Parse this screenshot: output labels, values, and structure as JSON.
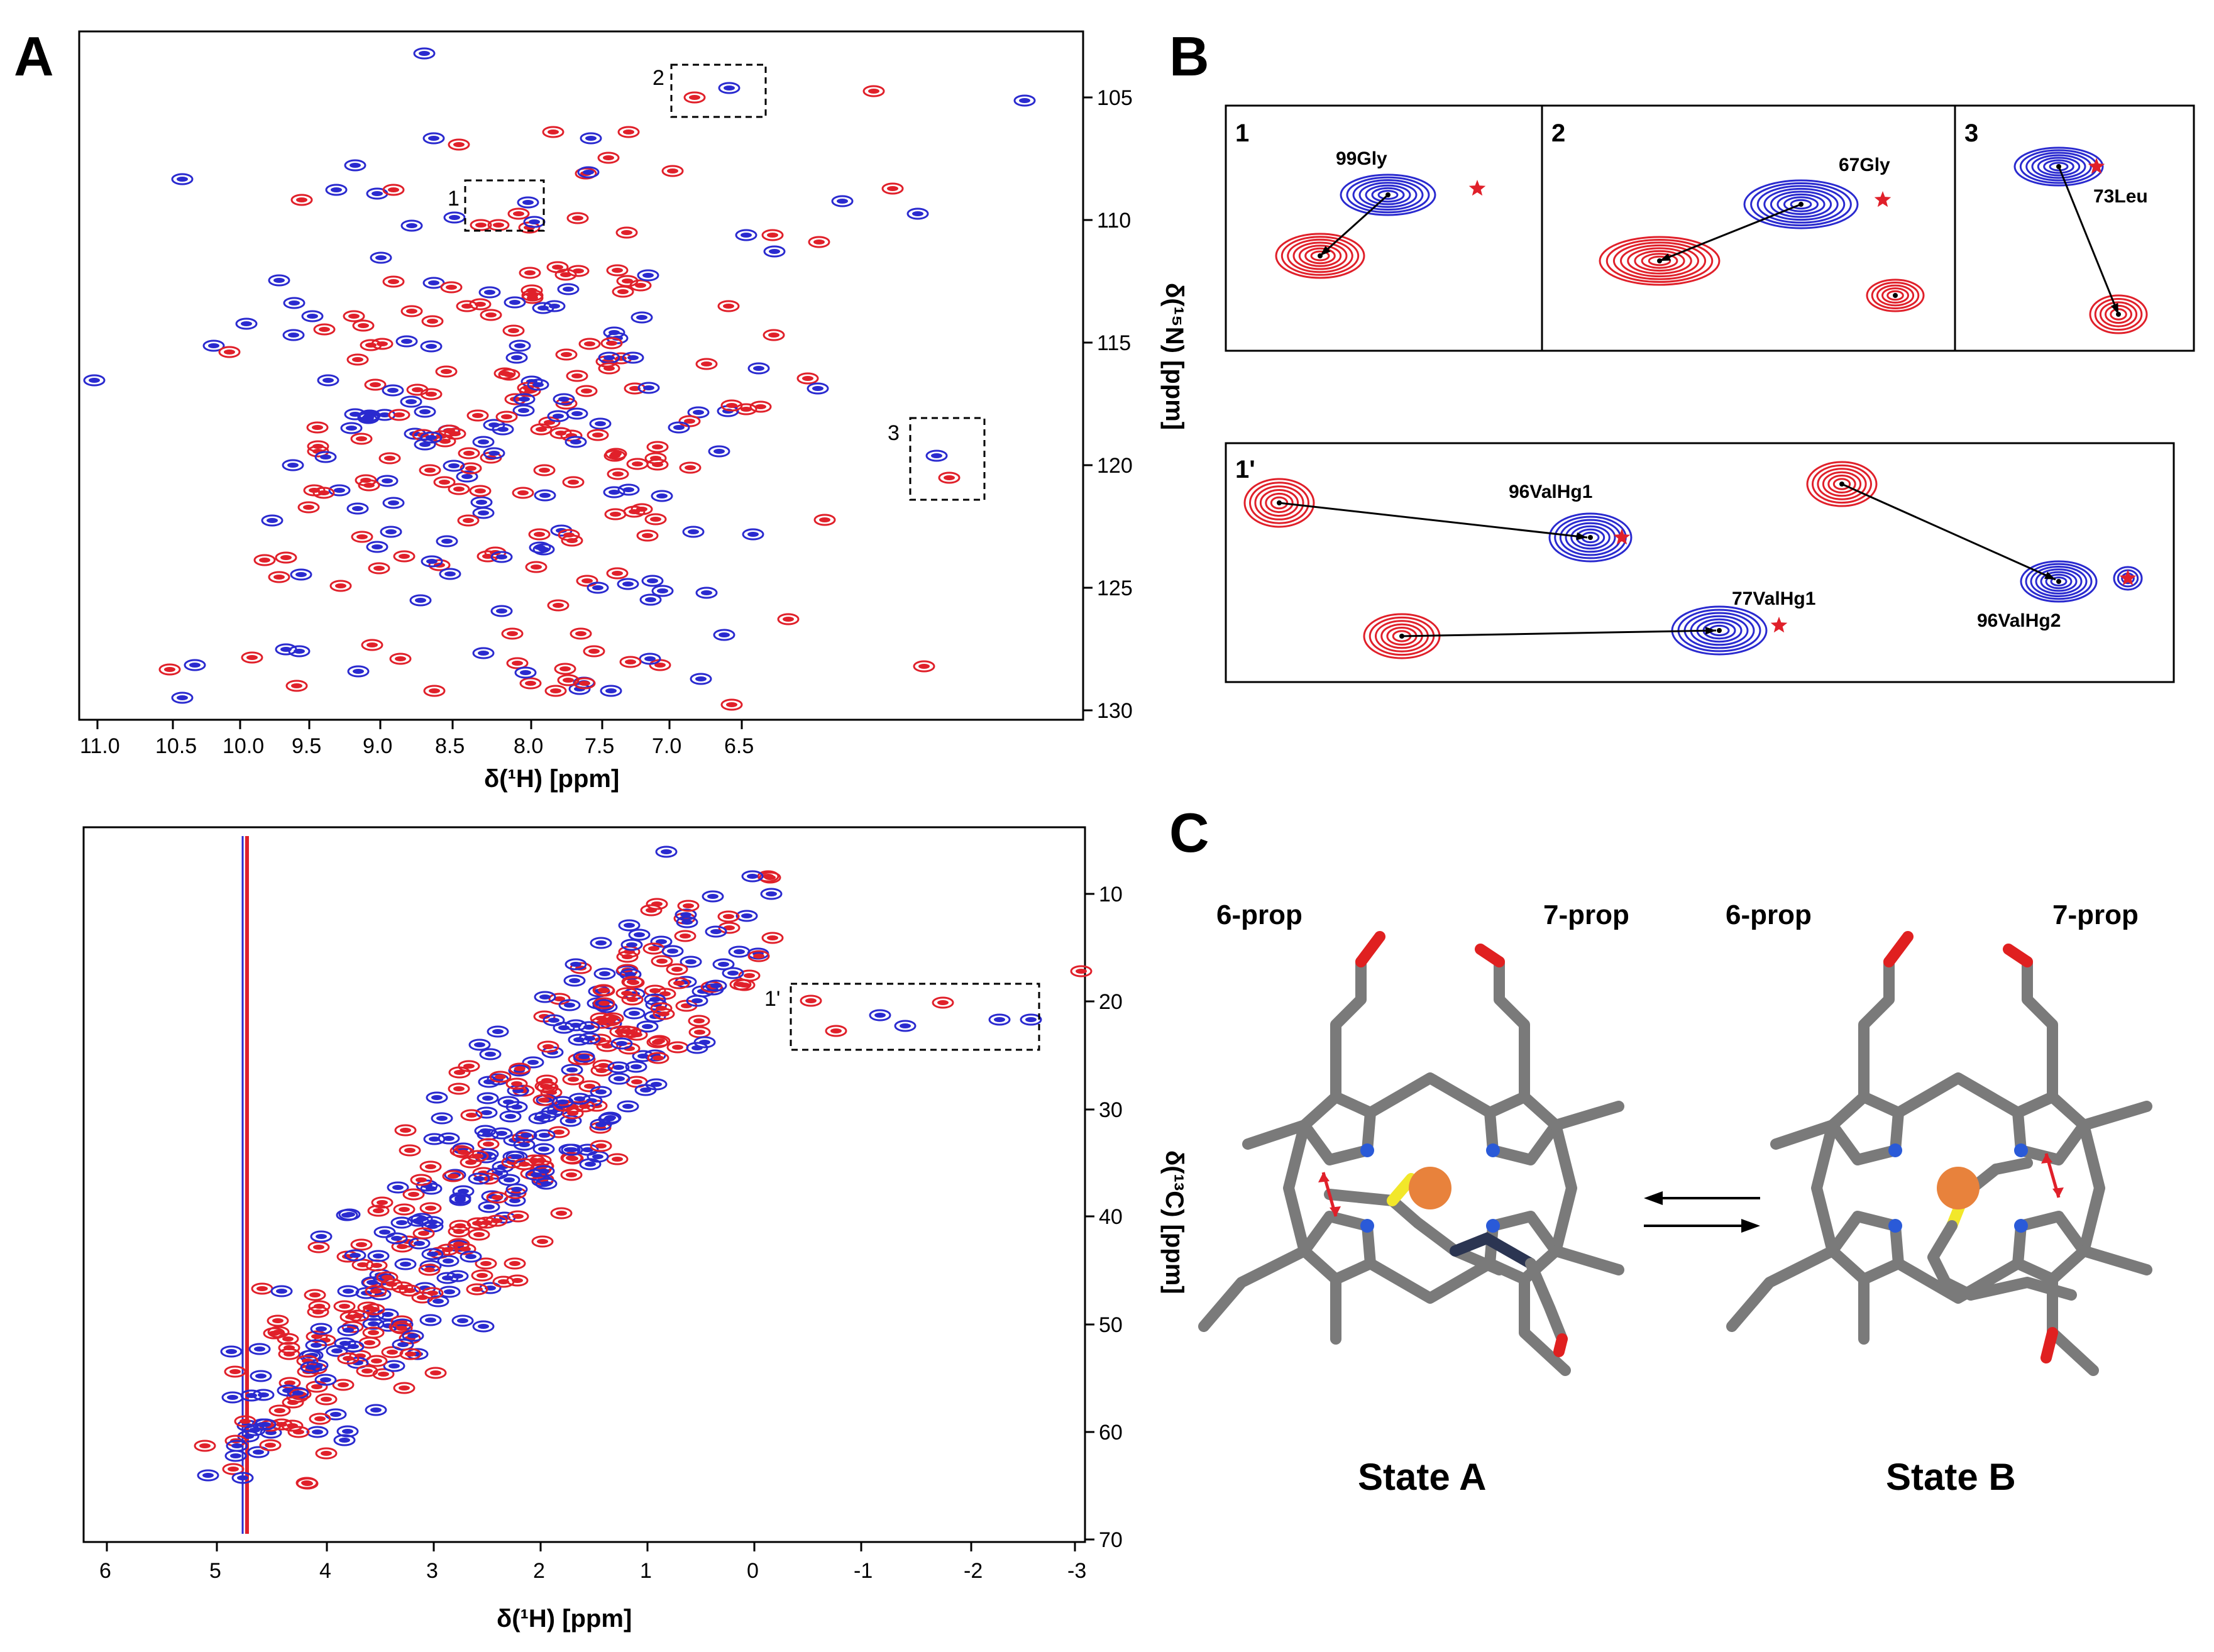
{
  "figure": {
    "panel_a": {
      "letter": "A",
      "hsqc": {
        "xlabel": "δ(¹H) [ppm]",
        "ylabel": "δ(¹⁵N) [ppm]",
        "xticks": [
          "11.0",
          "10.5",
          "10.0",
          "9.5",
          "9.0",
          "8.5",
          "8.0",
          "7.5",
          "7.0",
          "6.5"
        ],
        "yticks": [
          "105",
          "110",
          "115",
          "120",
          "125",
          "130"
        ],
        "box_labels": [
          "1",
          "2",
          "3"
        ]
      },
      "hmqc": {
        "xlabel": "δ(¹H) [ppm]",
        "ylabel": "δ(¹³C) [ppm]",
        "xticks": [
          "6",
          "5",
          "4",
          "3",
          "2",
          "1",
          "0",
          "-1",
          "-2",
          "-3"
        ],
        "yticks": [
          "10",
          "20",
          "30",
          "40",
          "50",
          "60",
          "70"
        ],
        "box_label": "1'"
      }
    },
    "panel_b": {
      "letter": "B",
      "insets_top": [
        {
          "index": "1",
          "residue": "99Gly"
        },
        {
          "index": "2",
          "residue": "67Gly"
        },
        {
          "index": "3",
          "residue": "73Leu"
        }
      ],
      "inset_bottom": {
        "index": "1'",
        "labels": [
          "96ValHg1",
          "77ValHg1",
          "96ValHg2"
        ]
      }
    },
    "panel_c": {
      "letter": "C",
      "state_a": {
        "title": "State A",
        "prop6": "6-prop",
        "prop7": "7-prop"
      },
      "state_b": {
        "title": "State B",
        "prop6": "6-prop",
        "prop7": "7-prop"
      }
    },
    "colors": {
      "red": "#e0202a",
      "blue": "#2a2acf",
      "heme_gray": "#7a7a7a",
      "iron": "#e8823c",
      "sulfur": "#f2e72a",
      "oxygen": "#e02020",
      "nitrogen": "#2a5ad8"
    }
  }
}
